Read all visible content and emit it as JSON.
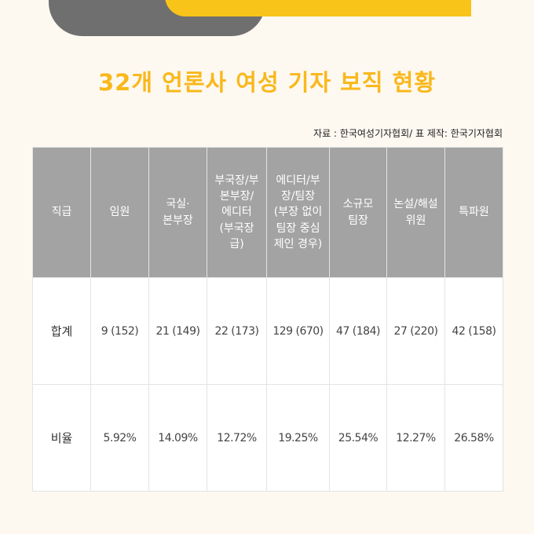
{
  "title": "32개 언론사 여성 기자 보직 현황",
  "source": "자료 : 한국여성기자협회/ 표 제작: 한국기자협회",
  "table": {
    "headers": [
      "직급",
      "임원",
      "국실·\n본부장",
      "부국장/부\n본부장/\n에디터\n(부국장\n급)",
      "에디터/부\n장/팀장\n(부장 없이\n팀장 중심\n제인 경우)",
      "소규모\n팀장",
      "논설/해설\n위원",
      "특파원"
    ],
    "rows": [
      {
        "label": "합계",
        "cells": [
          "9 (152)",
          "21 (149)",
          "22 (173)",
          "129 (670)",
          "47 (184)",
          "27 (220)",
          "42 (158)"
        ]
      },
      {
        "label": "비율",
        "cells": [
          "5.92%",
          "14.09%",
          "12.72%",
          "19.25%",
          "25.54%",
          "12.27%",
          "26.58%"
        ]
      }
    ]
  },
  "colors": {
    "title": "#f9b81b",
    "accent_yellow": "#f9c41a",
    "accent_grey": "#6f6f6f",
    "header_bg": "#a3a3a3",
    "background": "#fdf8f0"
  }
}
